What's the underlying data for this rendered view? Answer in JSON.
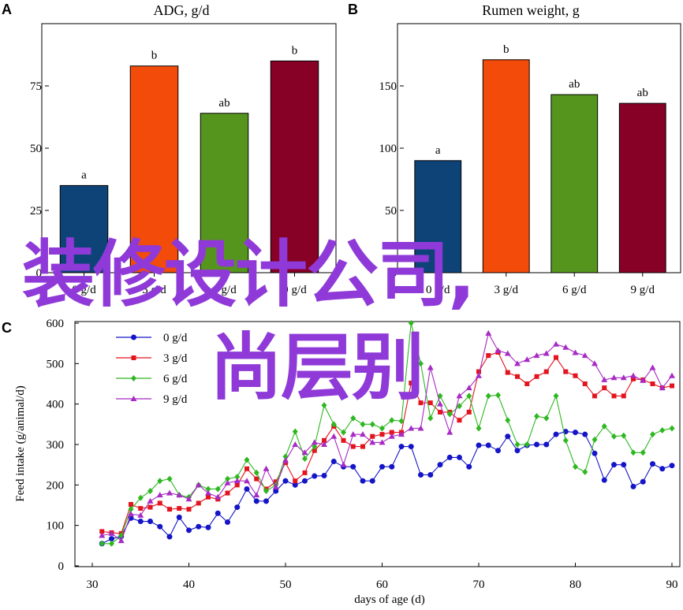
{
  "panels": {
    "A": {
      "letter": "A",
      "title": "ADG, g/d",
      "yticks": [
        "0",
        "25",
        "50",
        "75"
      ],
      "categories": [
        "0 g/d",
        "3 g/d",
        "6 g/d",
        "9 g/d"
      ],
      "letters": [
        "a",
        "b",
        "ab",
        "b"
      ],
      "colors": [
        "#0e4378",
        "#f24b0a",
        "#56951d",
        "#870025"
      ]
    },
    "B": {
      "letter": "B",
      "title": "Rumen weight, g",
      "yticks": [
        "0",
        "50",
        "100",
        "150"
      ],
      "categories": [
        "0 g/d",
        "3 g/d",
        "6 g/d",
        "9 g/d"
      ],
      "letters": [
        "a",
        "b",
        "ab",
        "ab"
      ],
      "colors": [
        "#0e4378",
        "#f24b0a",
        "#56951d",
        "#870025"
      ]
    },
    "C": {
      "letter": "C",
      "xlabel": "days of age (d)",
      "ylabel": "Feed intake (g/animal/d)",
      "xticks": [
        "30",
        "40",
        "50",
        "60",
        "70",
        "80",
        "90"
      ],
      "yticks": [
        "0",
        "100",
        "200",
        "300",
        "400",
        "500",
        "600"
      ],
      "legend": [
        "0 g/d",
        "3 g/d",
        "6 g/d",
        "9 g/d"
      ],
      "colors": [
        "#1515c8",
        "#e3141e",
        "#2eb820",
        "#a72bc4"
      ]
    }
  },
  "watermark": {
    "line1": "装修设计公司,",
    "line2": "尚层别"
  },
  "chart_data": [
    {
      "type": "bar",
      "title": "ADG, g/d",
      "categories": [
        "0 g/d",
        "3 g/d",
        "6 g/d",
        "9 g/d"
      ],
      "values": [
        35,
        83,
        64,
        85
      ],
      "annotations": [
        "a",
        "b",
        "ab",
        "b"
      ],
      "ylim": [
        0,
        100
      ]
    },
    {
      "type": "bar",
      "title": "Rumen weight, g",
      "categories": [
        "0 g/d",
        "3 g/d",
        "6 g/d",
        "9 g/d"
      ],
      "values": [
        90,
        171,
        143,
        136
      ],
      "annotations": [
        "a",
        "b",
        "ab",
        "ab"
      ],
      "ylim": [
        0,
        200
      ]
    },
    {
      "type": "line",
      "xlabel": "days of age (d)",
      "ylabel": "Feed intake (g/animal/d)",
      "xlim": [
        30,
        90
      ],
      "ylim": [
        0,
        600
      ],
      "x": [
        31,
        32,
        33,
        34,
        35,
        36,
        37,
        38,
        39,
        40,
        41,
        42,
        43,
        44,
        45,
        46,
        47,
        48,
        49,
        50,
        51,
        52,
        53,
        54,
        55,
        56,
        57,
        58,
        59,
        60,
        61,
        62,
        63,
        64,
        65,
        66,
        67,
        68,
        69,
        70,
        71,
        72,
        73,
        74,
        75,
        76,
        77,
        78,
        79,
        80,
        81,
        82,
        83,
        84,
        85,
        86,
        87,
        88,
        89,
        90
      ],
      "series": [
        {
          "name": "0 g/d",
          "values": [
            55,
            67,
            73,
            118,
            110,
            110,
            97,
            72,
            120,
            88,
            97,
            95,
            130,
            108,
            145,
            190,
            160,
            160,
            185,
            210,
            200,
            210,
            222,
            223,
            258,
            245,
            245,
            210,
            210,
            245,
            245,
            295,
            295,
            225,
            225,
            250,
            268,
            268,
            245,
            298,
            298,
            285,
            320,
            285,
            298,
            300,
            300,
            325,
            332,
            330,
            325,
            278,
            212,
            250,
            250,
            196,
            208,
            252,
            240,
            248
          ]
        },
        {
          "name": "3 g/d",
          "values": [
            85,
            82,
            80,
            152,
            142,
            145,
            155,
            140,
            142,
            140,
            155,
            170,
            165,
            180,
            200,
            240,
            215,
            190,
            208,
            255,
            210,
            230,
            285,
            310,
            345,
            310,
            295,
            295,
            320,
            325,
            330,
            330,
            452,
            403,
            403,
            380,
            380,
            360,
            380,
            480,
            520,
            528,
            478,
            468,
            450,
            468,
            480,
            515,
            480,
            470,
            450,
            420,
            440,
            420,
            420,
            462,
            460,
            450,
            440,
            445
          ]
        },
        {
          "name": "6 g/d",
          "values": [
            55,
            55,
            75,
            140,
            168,
            185,
            210,
            215,
            175,
            170,
            200,
            190,
            190,
            215,
            220,
            262,
            230,
            185,
            200,
            270,
            332,
            265,
            295,
            397,
            350,
            330,
            365,
            350,
            350,
            340,
            360,
            358,
            600,
            500,
            365,
            420,
            375,
            395,
            420,
            340,
            420,
            422,
            360,
            300,
            300,
            370,
            365,
            420,
            310,
            245,
            232,
            312,
            345,
            320,
            322,
            280,
            280,
            325,
            335,
            340
          ]
        },
        {
          "name": "9 g/d",
          "values": [
            75,
            80,
            62,
            128,
            125,
            160,
            175,
            180,
            175,
            165,
            200,
            180,
            170,
            205,
            210,
            210,
            175,
            240,
            195,
            260,
            300,
            280,
            305,
            300,
            320,
            250,
            325,
            325,
            305,
            305,
            320,
            325,
            340,
            340,
            490,
            400,
            330,
            420,
            440,
            470,
            575,
            532,
            525,
            500,
            510,
            520,
            525,
            548,
            540,
            527,
            520,
            500,
            460,
            465,
            465,
            470,
            458,
            490,
            440,
            470
          ]
        }
      ]
    }
  ]
}
